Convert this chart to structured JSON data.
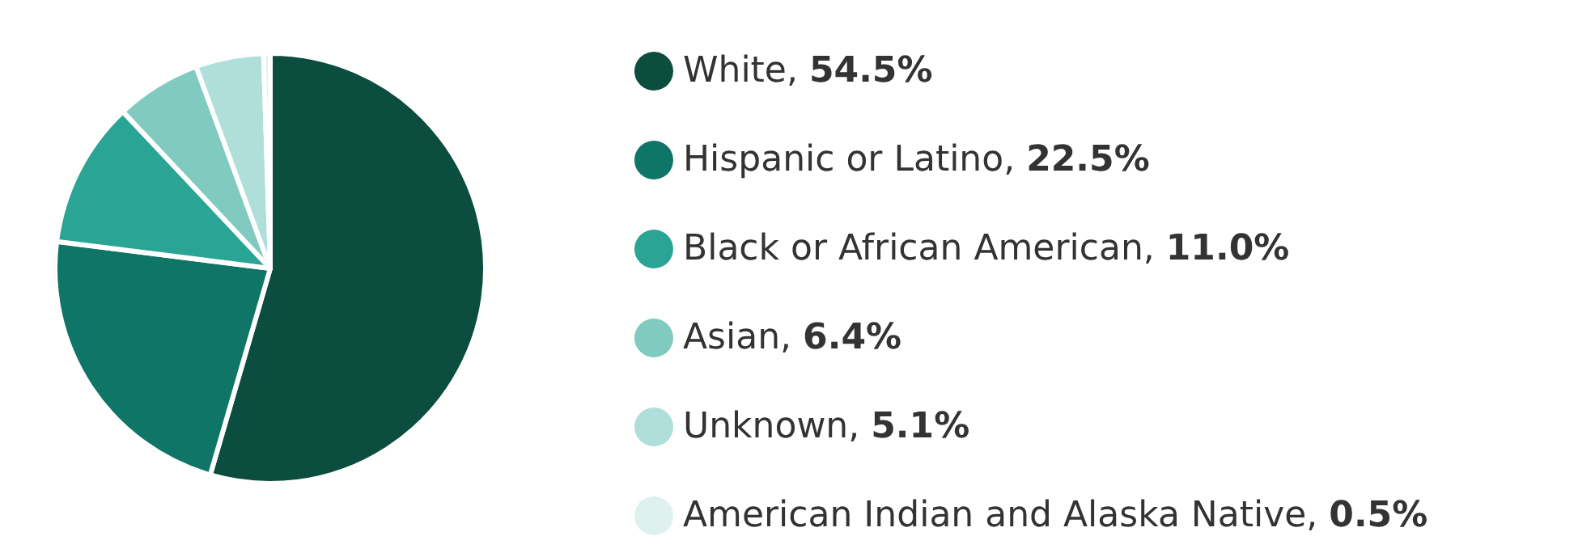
{
  "chart_data": {
    "type": "pie",
    "categories": [
      "White, 54.5%",
      "Hispanic or Latino, 22.5%",
      "Black or African American, 11.0%",
      "Asian, 6.4%",
      "Unknown, 5.1%",
      "American Indian and Alaska Native, 0.5%"
    ],
    "values": [
      54.5,
      22.5,
      11.0,
      6.4,
      5.1,
      0.5
    ],
    "colors": [
      "#0b4d3e",
      "#0f7566",
      "#2aa595",
      "#80cac0",
      "#b0dfda",
      "#dff1ef"
    ],
    "legend": "right"
  }
}
